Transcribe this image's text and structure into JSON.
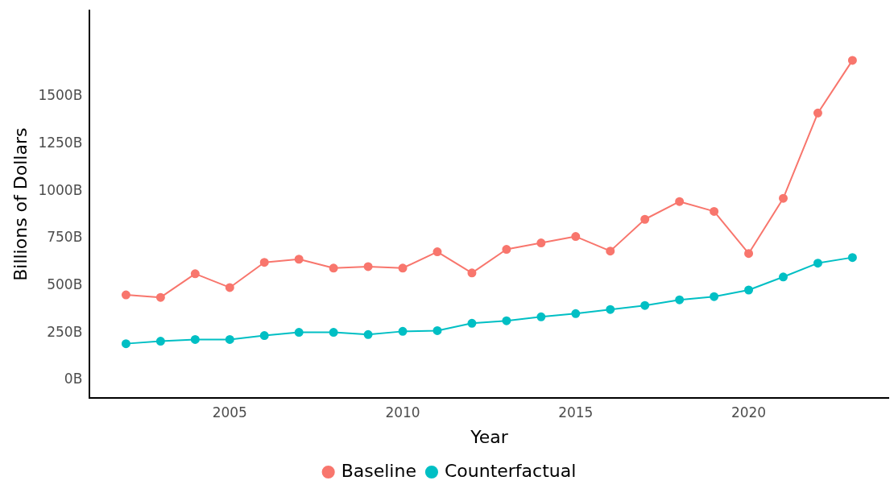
{
  "chart_data": {
    "type": "line",
    "xlabel": "Year",
    "ylabel": "Billions of Dollars",
    "x": [
      2002,
      2003,
      2004,
      2005,
      2006,
      2007,
      2008,
      2009,
      2010,
      2011,
      2012,
      2013,
      2014,
      2015,
      2016,
      2017,
      2018,
      2019,
      2020,
      2021,
      2022,
      2023
    ],
    "series": [
      {
        "name": "Baseline",
        "color": "#f8766d",
        "values": [
          451,
          438,
          563,
          490,
          623,
          640,
          593,
          601,
          593,
          679,
          567,
          692,
          726,
          760,
          683,
          851,
          945,
          893,
          670,
          962,
          1413,
          1692
        ]
      },
      {
        "name": "Counterfactual",
        "color": "#00bfc4",
        "values": [
          193,
          206,
          215,
          215,
          236,
          253,
          253,
          241,
          258,
          262,
          301,
          314,
          335,
          352,
          374,
          395,
          425,
          442,
          477,
          546,
          619,
          649
        ]
      }
    ],
    "xlim": [
      2000.95,
      2024.05
    ],
    "xticks": [
      2005,
      2010,
      2015,
      2020
    ],
    "ylim": [
      -95,
      1955
    ],
    "yticks": [
      {
        "value": 0,
        "label": "0B"
      },
      {
        "value": 250,
        "label": "250B"
      },
      {
        "value": 500,
        "label": "500B"
      },
      {
        "value": 750,
        "label": "750B"
      },
      {
        "value": 1000,
        "label": "1000B"
      },
      {
        "value": 1250,
        "label": "1250B"
      },
      {
        "value": 1500,
        "label": "1500B"
      }
    ],
    "grid": false,
    "legend": "bottom",
    "marker": "circle",
    "line_style": "solid"
  }
}
